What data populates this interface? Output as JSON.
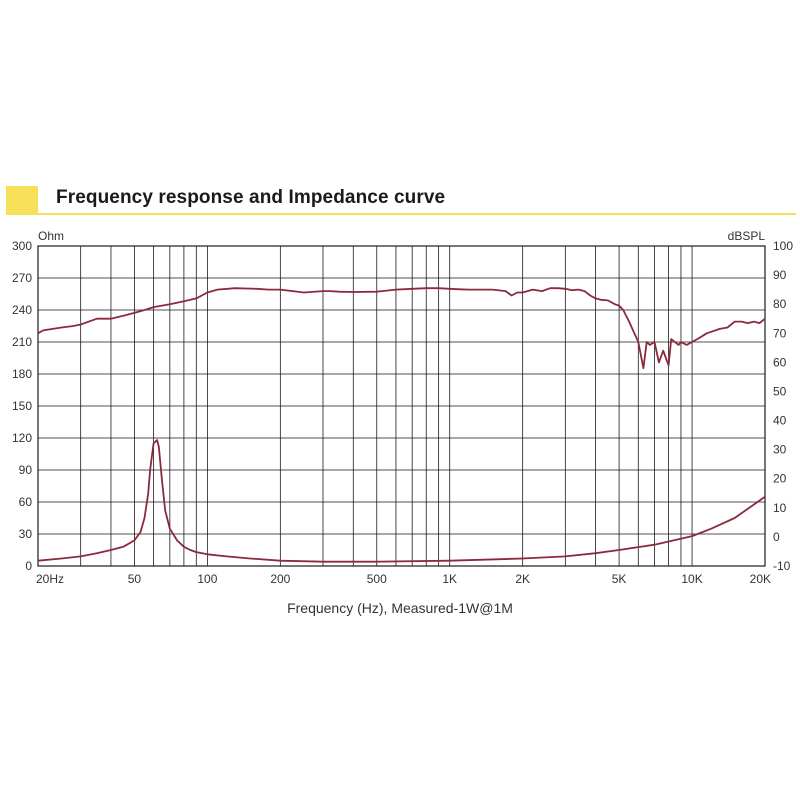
{
  "chart_data": {
    "title": "Frequency response and Impedance curve",
    "type": "line",
    "x_scale": "log",
    "xlim": [
      20,
      20000
    ],
    "xlabel": "Frequency (Hz), Measured-1W@1M",
    "x_tick_values": [
      20,
      50,
      100,
      200,
      500,
      1000,
      2000,
      5000,
      10000,
      20000
    ],
    "x_tick_labels": [
      "20Hz",
      "50",
      "100",
      "200",
      "500",
      "1K",
      "2K",
      "5K",
      "10K",
      "20K"
    ],
    "left_axis": {
      "label": "Ohm",
      "lim": [
        0,
        300
      ],
      "ticks": [
        0,
        30,
        60,
        90,
        120,
        150,
        180,
        210,
        240,
        270,
        300
      ]
    },
    "right_axis": {
      "label": "dBSPL",
      "lim": [
        -10,
        100
      ],
      "ticks": [
        -10,
        0,
        10,
        20,
        30,
        40,
        50,
        60,
        70,
        80,
        90,
        100
      ]
    },
    "grid": true,
    "colors": {
      "curve": "#8b2a3c",
      "grid": "#1a1a1a",
      "accent": "#f6e05a"
    },
    "series": [
      {
        "axis": "right",
        "x": [
          20,
          21,
          23,
          25,
          28,
          30,
          35,
          40,
          45,
          50,
          55,
          60,
          70,
          80,
          90,
          100,
          110,
          130,
          160,
          180,
          200,
          250,
          300,
          320,
          350,
          400,
          500,
          600,
          700,
          800,
          900,
          1000,
          1100,
          1200,
          1500,
          1700,
          1800,
          1900,
          2000,
          2200,
          2400,
          2600,
          2800,
          3000,
          3200,
          3400,
          3600,
          3800,
          4000,
          4200,
          4500,
          4800,
          5000,
          5200,
          5500,
          6000,
          6300,
          6500,
          6700,
          7000,
          7300,
          7600,
          8000,
          8200,
          8500,
          8800,
          9000,
          9500,
          10000,
          10500,
          11000,
          11500,
          12000,
          12500,
          13000,
          14000,
          15000,
          16000,
          17000,
          18000,
          19000,
          20000
        ],
        "values": [
          70,
          71,
          71.5,
          72,
          72.5,
          73,
          75,
          75,
          76,
          77,
          78,
          79,
          80,
          81,
          82,
          84,
          85,
          85.5,
          85.3,
          85,
          85,
          84,
          84.5,
          84.5,
          84.3,
          84.2,
          84.3,
          85,
          85.3,
          85.5,
          85.5,
          85.3,
          85.1,
          85,
          85,
          84.5,
          83,
          84,
          84,
          85,
          84.5,
          85.5,
          85.5,
          85.3,
          84.8,
          85,
          84.5,
          83,
          82,
          81.5,
          81.3,
          80,
          79.5,
          78,
          74,
          67,
          58,
          67,
          66,
          67,
          60,
          64,
          59,
          68,
          67,
          66,
          67,
          66,
          67,
          68,
          69,
          70,
          70.5,
          71,
          71.5,
          72,
          74,
          74,
          73.5,
          74,
          73.5,
          75
        ]
      },
      {
        "axis": "left",
        "x": [
          20,
          25,
          30,
          35,
          40,
          45,
          50,
          53,
          55,
          57,
          58,
          60,
          62,
          63,
          65,
          67,
          70,
          75,
          80,
          85,
          90,
          100,
          120,
          150,
          200,
          300,
          500,
          1000,
          2000,
          3000,
          4000,
          5000,
          7000,
          10000,
          12000,
          15000,
          20000
        ],
        "values": [
          5,
          7,
          9,
          12,
          15,
          18,
          24,
          32,
          45,
          68,
          90,
          115,
          118,
          112,
          80,
          52,
          35,
          24,
          18,
          15,
          13,
          11,
          9,
          7,
          5,
          4,
          4,
          5,
          7,
          9,
          12,
          15,
          20,
          28,
          35,
          45,
          65
        ]
      }
    ]
  }
}
